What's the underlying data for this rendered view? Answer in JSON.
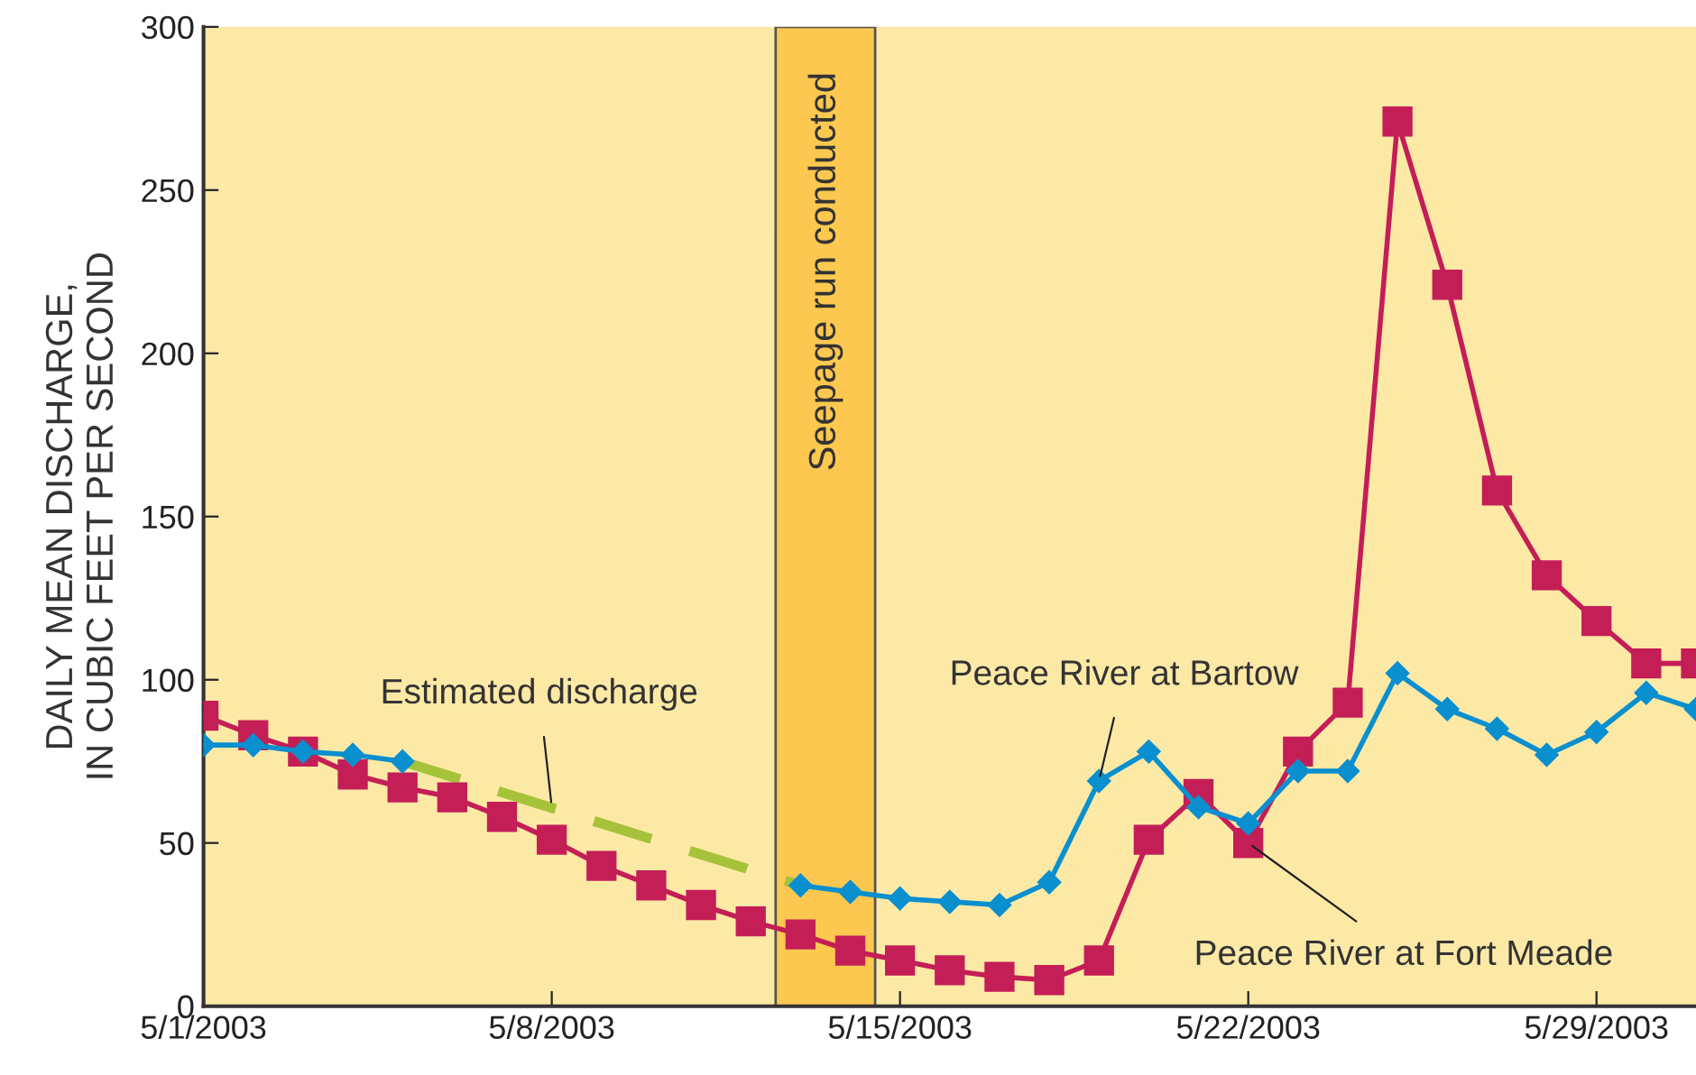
{
  "chart_data": {
    "type": "line",
    "ylabel": "DAILY MEAN DISCHARGE,\nIN CUBIC FEET PER SECOND",
    "xlim": [
      "2003-05-01",
      "2003-05-31"
    ],
    "ylim": [
      0,
      300
    ],
    "xticks": [
      {
        "value": "2003-05-01",
        "label": "5/1/2003"
      },
      {
        "value": "2003-05-08",
        "label": "5/8/2003"
      },
      {
        "value": "2003-05-15",
        "label": "5/15/2003"
      },
      {
        "value": "2003-05-22",
        "label": "5/22/2003"
      },
      {
        "value": "2003-05-29",
        "label": "5/29/2003"
      }
    ],
    "yticks": [
      0,
      50,
      100,
      150,
      200,
      250,
      300
    ],
    "grid": false,
    "legend": false,
    "line_style": "solid",
    "series": [
      {
        "color": "#c41e57",
        "marker": "square",
        "x": [
          "2003-05-01",
          "2003-05-02",
          "2003-05-03",
          "2003-05-04",
          "2003-05-05",
          "2003-05-06",
          "2003-05-07",
          "2003-05-08",
          "2003-05-09",
          "2003-05-10",
          "2003-05-11",
          "2003-05-12",
          "2003-05-13",
          "2003-05-14",
          "2003-05-15",
          "2003-05-16",
          "2003-05-17",
          "2003-05-18",
          "2003-05-19",
          "2003-05-20",
          "2003-05-21",
          "2003-05-22",
          "2003-05-23",
          "2003-05-24",
          "2003-05-25",
          "2003-05-26",
          "2003-05-27",
          "2003-05-28",
          "2003-05-29",
          "2003-05-30",
          "2003-05-31"
        ],
        "values": [
          89,
          83,
          78,
          71,
          67,
          64,
          58,
          51,
          43,
          37,
          31,
          26,
          22,
          17,
          14,
          11,
          9,
          8,
          14,
          51,
          65,
          50,
          78,
          93,
          271,
          221,
          158,
          132,
          118,
          105,
          105
        ]
      },
      {
        "color": "#0a8fcf",
        "marker": "diamond",
        "x": [
          "2003-05-01",
          "2003-05-02",
          "2003-05-03",
          "2003-05-04",
          "2003-05-05",
          "2003-05-06",
          "2003-05-07",
          "2003-05-08",
          "2003-05-09",
          "2003-05-10",
          "2003-05-11",
          "2003-05-12",
          "2003-05-13",
          "2003-05-14",
          "2003-05-15",
          "2003-05-16",
          "2003-05-17",
          "2003-05-18",
          "2003-05-19",
          "2003-05-20",
          "2003-05-21",
          "2003-05-22",
          "2003-05-23",
          "2003-05-24",
          "2003-05-25",
          "2003-05-26",
          "2003-05-27",
          "2003-05-28",
          "2003-05-29",
          "2003-05-30",
          "2003-05-31"
        ],
        "values": [
          80,
          80,
          78,
          77,
          75,
          null,
          null,
          null,
          null,
          null,
          null,
          null,
          37,
          35,
          33,
          32,
          31,
          38,
          69,
          78,
          61,
          56,
          72,
          72,
          102,
          91,
          85,
          77,
          84,
          96,
          91
        ]
      },
      {
        "color": "#a6c23a",
        "marker": "none",
        "line_style": "dashed",
        "x": [
          "2003-05-05",
          "2003-05-13"
        ],
        "values": [
          75,
          37
        ]
      }
    ],
    "bands": [
      {
        "axis": "x",
        "from": "2003-05-12T12:00",
        "to": "2003-05-14T12:00",
        "label": "Seepage run conducted",
        "color": "#fcc850"
      }
    ],
    "annotations": [
      {
        "text": "Estimated discharge",
        "x": "2003-05-08",
        "y": 61
      },
      {
        "text": "Peace River at Bartow",
        "x": "2003-05-19",
        "y": 69
      },
      {
        "text": "Peace River at Fort Meade",
        "x": "2003-05-22",
        "y": 50
      }
    ]
  }
}
